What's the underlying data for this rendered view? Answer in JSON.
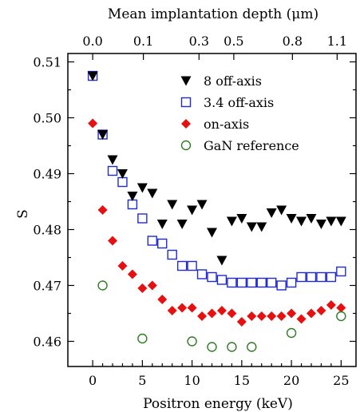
{
  "chart_data": {
    "type": "scatter",
    "xlabel": "Positron energy (keV)",
    "ylabel": "S",
    "top_axis_label": "Mean implantation depth (μm)",
    "xlim": [
      -2.5,
      26.5
    ],
    "ylim": [
      0.4555,
      0.5115
    ],
    "x_ticks": [
      0,
      5,
      10,
      15,
      20,
      25
    ],
    "y_ticks": [
      0.46,
      0.47,
      0.48,
      0.49,
      0.5,
      0.51
    ],
    "y_tick_labels": [
      "0.46",
      "0.47",
      "0.48",
      "0.49",
      "0.50",
      "0.51"
    ],
    "top_ticks": [
      {
        "label": "0.0",
        "energy": 0
      },
      {
        "label": "0.1",
        "energy": 5.1
      },
      {
        "label": "0.3",
        "energy": 10.7
      },
      {
        "label": "0.5",
        "energy": 14.2
      },
      {
        "label": "0.8",
        "energy": 20.1
      },
      {
        "label": "1.1",
        "energy": 24.6
      }
    ],
    "grid": false,
    "legend_position": "top-right",
    "series": [
      {
        "name": "8 off-axis",
        "marker": "triangle-down",
        "color": "#000000",
        "x": [
          0,
          1,
          2,
          3,
          4,
          5,
          6,
          7,
          8,
          9,
          10,
          11,
          12,
          13,
          14,
          15,
          16,
          17,
          18,
          19,
          20,
          21,
          22,
          23,
          24,
          25
        ],
        "y": [
          0.5075,
          0.497,
          0.4925,
          0.49,
          0.486,
          0.4875,
          0.4865,
          0.481,
          0.4845,
          0.481,
          0.4835,
          0.4845,
          0.4795,
          0.4745,
          0.4815,
          0.482,
          0.4805,
          0.4805,
          0.483,
          0.4835,
          0.482,
          0.4815,
          0.482,
          0.481,
          0.4815,
          0.4815
        ]
      },
      {
        "name": "3.4 off-axis",
        "marker": "square-open",
        "color": "#1f2bd0",
        "x": [
          0,
          1,
          2,
          3,
          4,
          5,
          6,
          7,
          8,
          9,
          10,
          11,
          12,
          13,
          14,
          15,
          16,
          17,
          18,
          19,
          20,
          21,
          22,
          23,
          24,
          25
        ],
        "y": [
          0.5075,
          0.497,
          0.4905,
          0.4885,
          0.4845,
          0.482,
          0.478,
          0.4775,
          0.4755,
          0.4735,
          0.4735,
          0.472,
          0.4715,
          0.471,
          0.4705,
          0.4705,
          0.4705,
          0.4705,
          0.4705,
          0.47,
          0.4705,
          0.4715,
          0.4715,
          0.4715,
          0.4715,
          0.4725
        ]
      },
      {
        "name": "on-axis",
        "marker": "diamond",
        "color": "#e61010",
        "x": [
          0,
          1,
          2,
          3,
          4,
          5,
          6,
          7,
          8,
          9,
          10,
          11,
          12,
          13,
          14,
          15,
          16,
          17,
          18,
          19,
          20,
          21,
          22,
          23,
          24,
          25
        ],
        "y": [
          0.499,
          0.4835,
          0.478,
          0.4735,
          0.472,
          0.4695,
          0.47,
          0.4675,
          0.4655,
          0.466,
          0.466,
          0.4645,
          0.465,
          0.4655,
          0.465,
          0.4635,
          0.4645,
          0.4645,
          0.4645,
          0.4645,
          0.465,
          0.464,
          0.465,
          0.4655,
          0.4665,
          0.466
        ]
      },
      {
        "name": "GaN reference",
        "marker": "circle-open",
        "color": "#2e7d22",
        "x": [
          1,
          5,
          10,
          12,
          14,
          16,
          20,
          25
        ],
        "y": [
          0.47,
          0.4605,
          0.46,
          0.459,
          0.459,
          0.459,
          0.4615,
          0.4645
        ]
      }
    ]
  }
}
